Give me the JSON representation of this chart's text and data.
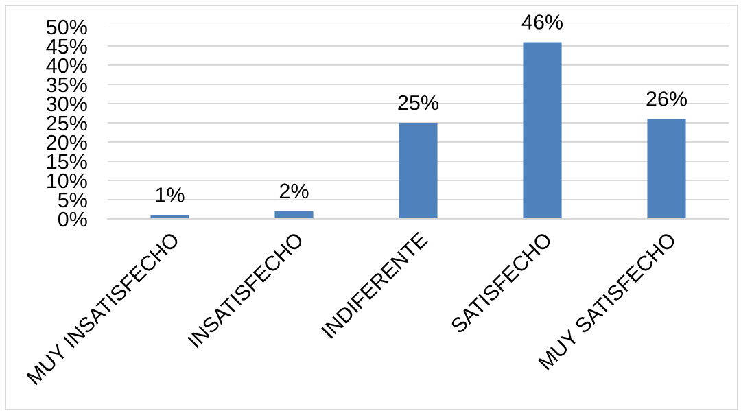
{
  "chart_data": {
    "type": "bar",
    "categories": [
      "MUY INSATISFECHO",
      "INSATISFECHO",
      "INDIFERENTE",
      "SATISFECHO",
      "MUY SATISFECHO"
    ],
    "values": [
      1,
      2,
      25,
      46,
      26
    ],
    "value_labels": [
      "1%",
      "2%",
      "25%",
      "46%",
      "26%"
    ],
    "color": "#4f81bd",
    "ylim": [
      0,
      50
    ],
    "yticks": [
      {
        "value": 0,
        "label": "0%"
      },
      {
        "value": 5,
        "label": "5%"
      },
      {
        "value": 10,
        "label": "10%"
      },
      {
        "value": 15,
        "label": "15%"
      },
      {
        "value": 20,
        "label": "20%"
      },
      {
        "value": 25,
        "label": "25%"
      },
      {
        "value": 30,
        "label": "30%"
      },
      {
        "value": 35,
        "label": "35%"
      },
      {
        "value": 40,
        "label": "40%"
      },
      {
        "value": 45,
        "label": "45%"
      },
      {
        "value": 50,
        "label": "50%"
      }
    ],
    "grid": "y"
  }
}
